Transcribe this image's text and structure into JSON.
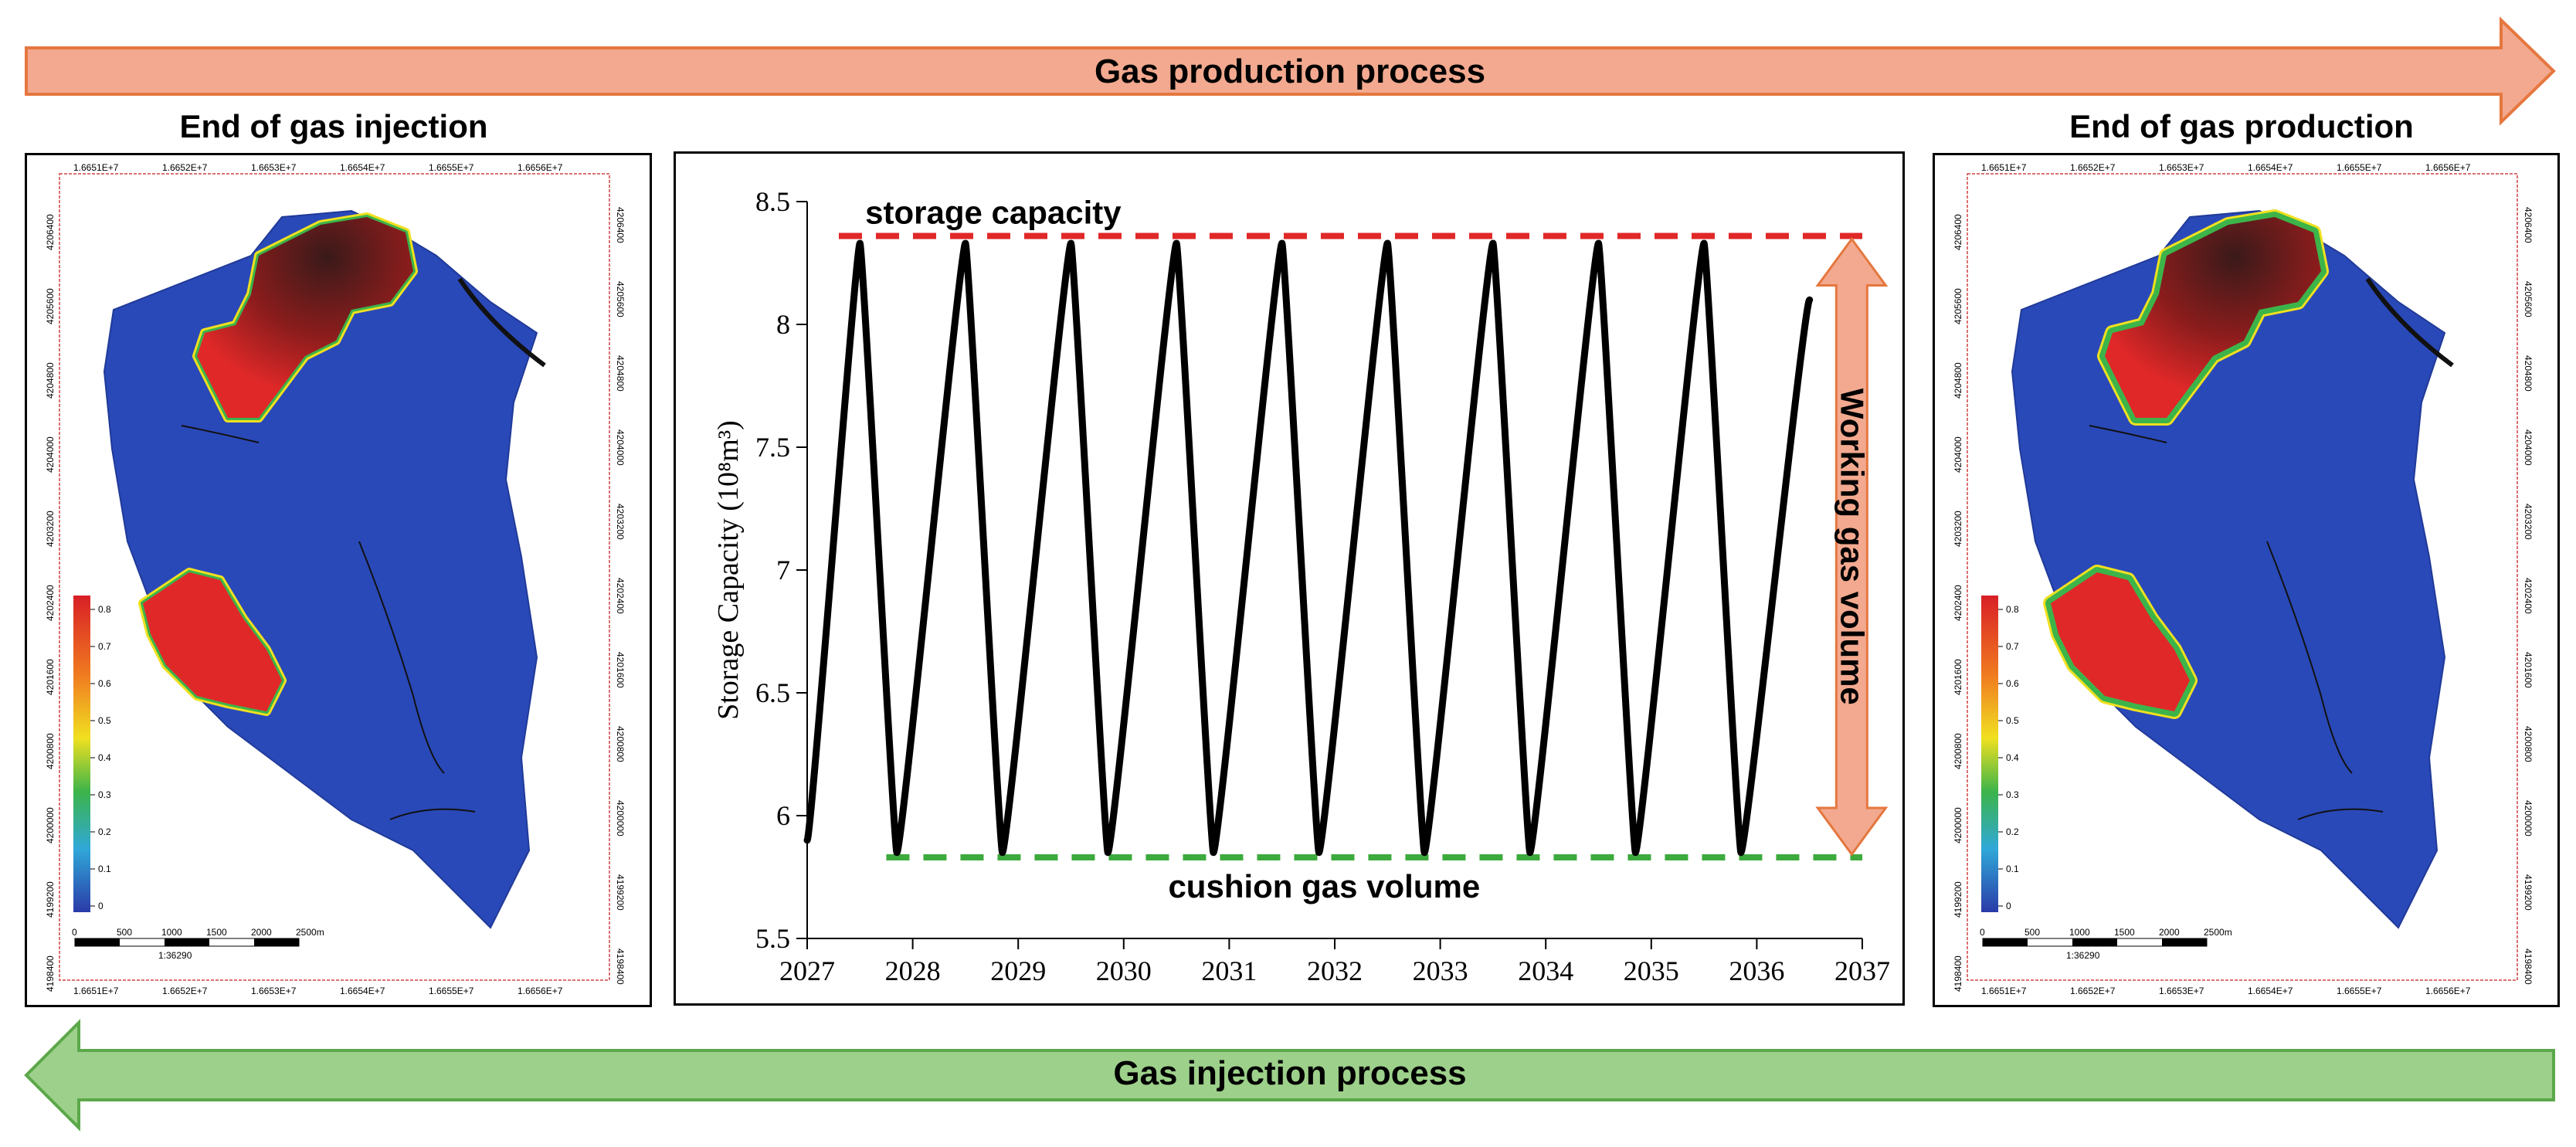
{
  "banners": {
    "top": {
      "label": "Gas production process",
      "fill": "#f2a98f",
      "stroke": "#e5773f"
    },
    "bottom": {
      "label": "Gas injection process",
      "fill": "#9dd08a",
      "stroke": "#5ba84a"
    }
  },
  "maps": {
    "left": {
      "title": "End of gas injection",
      "x_ticks": [
        "1.6651E+7",
        "1.6652E+7",
        "1.6653E+7",
        "1.6654E+7",
        "1.6655E+7",
        "1.6656E+7"
      ],
      "y_ticks_left": [
        "4206400",
        "4205600",
        "4204800",
        "4204000",
        "4203200",
        "4202400",
        "4201600",
        "4200800",
        "4200000",
        "4199200",
        "4198400"
      ],
      "y_ticks_right": [
        "4206400",
        "4205600",
        "4204800",
        "4204000",
        "4203200",
        "4202400",
        "4201600",
        "4200800",
        "4200000",
        "4199200",
        "4198400"
      ]
    },
    "right": {
      "title": "End of gas production",
      "x_ticks": [
        "1.6651E+7",
        "1.6652E+7",
        "1.6653E+7",
        "1.6654E+7",
        "1.6655E+7",
        "1.6656E+7"
      ],
      "y_ticks_left": [
        "4206400",
        "4205600",
        "4204800",
        "4204000",
        "4203200",
        "4202400",
        "4201600",
        "4200800",
        "4200000",
        "4199200",
        "4198400"
      ],
      "y_ticks_right": [
        "4206400",
        "4205600",
        "4204800",
        "4204000",
        "4203200",
        "4202400",
        "4201600",
        "4200800",
        "4200000",
        "4199200",
        "4198400"
      ]
    },
    "legend_values": [
      "0.8",
      "0.7",
      "0.6",
      "0.5",
      "0.4",
      "0.3",
      "0.2",
      "0.1",
      "0"
    ],
    "scale_labels": [
      "0",
      "500",
      "1000",
      "1500",
      "2000",
      "2500m"
    ],
    "scale_ratio": "1:36290",
    "colors": {
      "background": "#2a49b8",
      "high": "#e02828",
      "dark": "#3a1a1a",
      "mid": "#3cb44a",
      "low": "#f0e020"
    }
  },
  "chart_data": {
    "type": "line",
    "title": "",
    "xlabel": "",
    "ylabel": "Storage Capacity (10⁸m³)",
    "xlim": [
      2027,
      2037
    ],
    "ylim": [
      5.5,
      8.5
    ],
    "x_ticks": [
      "2027",
      "2028",
      "2029",
      "2030",
      "2031",
      "2032",
      "2033",
      "2034",
      "2035",
      "2036",
      "2037"
    ],
    "y_ticks": [
      "5.5",
      "6",
      "6.5",
      "7",
      "7.5",
      "8",
      "8.5"
    ],
    "series": [
      {
        "name": "Storage Capacity",
        "color": "#000000",
        "x": [
          2027.0,
          2027.5,
          2027.85,
          2028.5,
          2028.85,
          2029.5,
          2029.85,
          2030.5,
          2030.85,
          2031.5,
          2031.85,
          2032.5,
          2032.85,
          2033.5,
          2033.85,
          2034.5,
          2034.85,
          2035.5,
          2035.85,
          2036.5
        ],
        "y": [
          5.9,
          8.33,
          5.85,
          8.33,
          5.85,
          8.33,
          5.85,
          8.33,
          5.85,
          8.33,
          5.85,
          8.33,
          5.85,
          8.33,
          5.85,
          8.33,
          5.85,
          8.33,
          5.85,
          8.1
        ]
      }
    ],
    "reference_lines": [
      {
        "name": "storage capacity",
        "value": 8.36,
        "color": "#e02828"
      },
      {
        "name": "cushion gas volume",
        "value": 5.83,
        "color": "#3caa3c"
      }
    ],
    "annotations": {
      "working_gas": "Working gas volume",
      "arrow_fill": "#f2a98f",
      "arrow_stroke": "#e5773f"
    }
  }
}
